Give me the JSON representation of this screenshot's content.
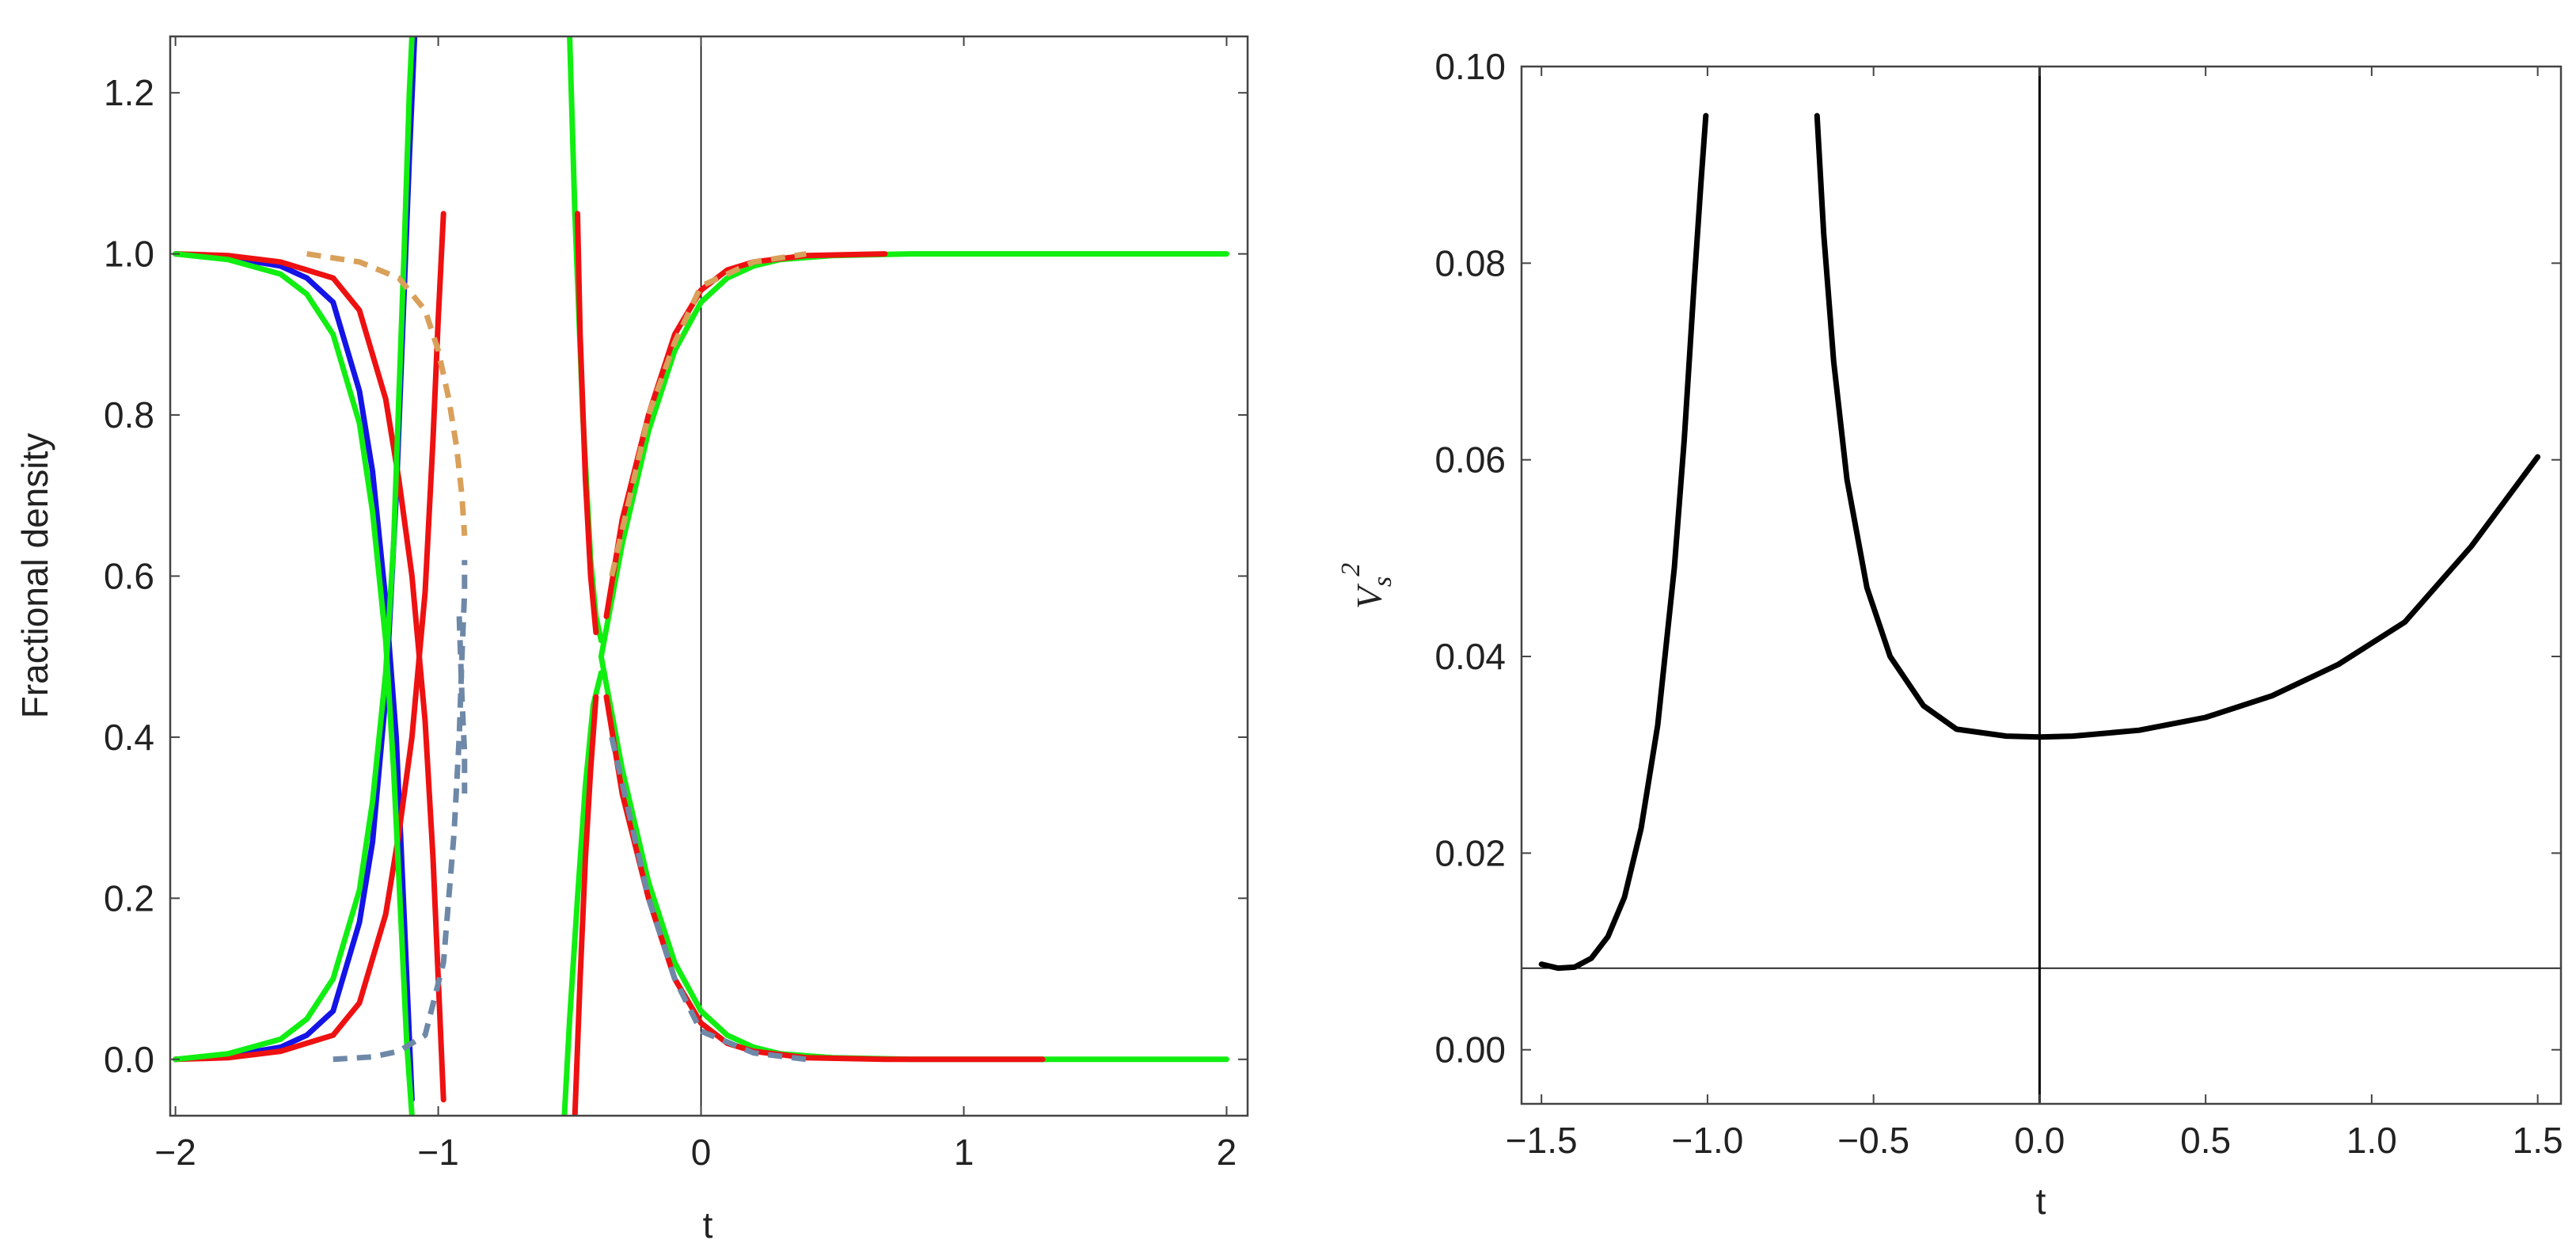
{
  "chart_data": [
    {
      "type": "line",
      "xlabel": "t",
      "ylabel": "Fractional density",
      "xlim": [
        -2.02,
        2.08
      ],
      "ylim": [
        -0.07,
        1.27
      ],
      "x_ticks": [
        -2,
        -1,
        0,
        1,
        2
      ],
      "x_tick_labels": [
        "−2",
        "−1",
        "0",
        "1",
        "2"
      ],
      "y_ticks": [
        0.0,
        0.2,
        0.4,
        0.6,
        0.8,
        1.0,
        1.2
      ],
      "y_tick_labels": [
        "0.0",
        "0.2",
        "0.4",
        "0.6",
        "0.8",
        "1.0",
        "1.2"
      ],
      "grid": false,
      "reference_lines": [
        {
          "orientation": "vertical",
          "x": 0
        }
      ],
      "colors": {
        "red": "#ee1111",
        "blue": "#1414e6",
        "green": "#11ee11",
        "dashed_upper": "#d9a05a",
        "dashed_lower": "#6e88a8"
      },
      "series": [
        {
          "color": "blue",
          "style": "solid",
          "x": [
            -2.0,
            -1.8,
            -1.6,
            -1.5,
            -1.4,
            -1.3,
            -1.25,
            -1.2,
            -1.16,
            -1.13,
            -1.1
          ],
          "y": [
            1.0,
            0.996,
            0.985,
            0.97,
            0.94,
            0.83,
            0.73,
            0.57,
            0.4,
            0.18,
            -0.05
          ]
        },
        {
          "color": "blue",
          "style": "solid",
          "x": [
            -2.0,
            -1.8,
            -1.6,
            -1.5,
            -1.4,
            -1.3,
            -1.25,
            -1.2,
            -1.16,
            -1.13,
            -1.11,
            -1.09
          ],
          "y": [
            0.0,
            0.004,
            0.015,
            0.03,
            0.06,
            0.17,
            0.27,
            0.45,
            0.7,
            0.95,
            1.12,
            1.27
          ]
        },
        {
          "color": "red",
          "style": "solid",
          "x": [
            -2.0,
            -1.8,
            -1.6,
            -1.4,
            -1.3,
            -1.2,
            -1.15,
            -1.1,
            -1.05,
            -1.02,
            -1.0,
            -0.98
          ],
          "y": [
            1.0,
            0.998,
            0.99,
            0.97,
            0.93,
            0.82,
            0.72,
            0.6,
            0.42,
            0.25,
            0.1,
            -0.05
          ]
        },
        {
          "color": "red",
          "style": "solid",
          "x": [
            -2.0,
            -1.8,
            -1.6,
            -1.4,
            -1.3,
            -1.2,
            -1.15,
            -1.1,
            -1.05,
            -1.02,
            -1.0,
            -0.98
          ],
          "y": [
            0.0,
            0.002,
            0.01,
            0.03,
            0.07,
            0.18,
            0.28,
            0.4,
            0.58,
            0.77,
            0.92,
            1.05
          ]
        },
        {
          "color": "green",
          "style": "solid",
          "x": [
            -2.0,
            -1.8,
            -1.6,
            -1.5,
            -1.4,
            -1.3,
            -1.25,
            -1.2,
            -1.17,
            -1.14,
            -1.12,
            -1.1
          ],
          "y": [
            1.0,
            0.993,
            0.975,
            0.95,
            0.9,
            0.79,
            0.68,
            0.52,
            0.36,
            0.16,
            0.02,
            -0.07
          ]
        },
        {
          "color": "green",
          "style": "solid",
          "x": [
            -2.0,
            -1.8,
            -1.6,
            -1.5,
            -1.4,
            -1.3,
            -1.25,
            -1.2,
            -1.17,
            -1.15,
            -1.13,
            -1.11,
            -1.1
          ],
          "y": [
            0.0,
            0.007,
            0.025,
            0.05,
            0.1,
            0.21,
            0.32,
            0.48,
            0.64,
            0.82,
            1.0,
            1.2,
            1.27
          ]
        },
        {
          "color": "dashed_upper",
          "style": "dashed",
          "x": [
            -1.5,
            -1.3,
            -1.15,
            -1.05,
            -1.0,
            -0.96,
            -0.93,
            -0.91,
            -0.9
          ],
          "y": [
            1.0,
            0.99,
            0.97,
            0.93,
            0.88,
            0.82,
            0.76,
            0.7,
            0.65
          ]
        },
        {
          "color": "dashed_lower",
          "style": "dashed",
          "x": [
            -1.4,
            -1.25,
            -1.15,
            -1.05,
            -0.98,
            -0.94,
            -0.92,
            -0.91,
            -0.9,
            -0.9
          ],
          "y": [
            0.0,
            0.003,
            0.01,
            0.03,
            0.12,
            0.28,
            0.4,
            0.5,
            0.58,
            0.62
          ]
        },
        {
          "color": "dashed_lower",
          "style": "dashed",
          "x": [
            -0.92,
            -0.91,
            -0.9,
            -0.9
          ],
          "y": [
            0.55,
            0.45,
            0.38,
            0.33
          ]
        },
        {
          "color": "green",
          "style": "solid",
          "x": [
            -0.5,
            -0.48,
            -0.45,
            -0.42,
            -0.4,
            -0.38
          ],
          "y": [
            1.27,
            1.05,
            0.8,
            0.62,
            0.55,
            0.52
          ]
        },
        {
          "color": "red",
          "style": "solid",
          "x": [
            -0.47,
            -0.46,
            -0.44,
            -0.42,
            -0.4
          ],
          "y": [
            1.05,
            0.9,
            0.72,
            0.6,
            0.53
          ]
        },
        {
          "color": "green",
          "style": "solid",
          "x": [
            -0.52,
            -0.5,
            -0.47,
            -0.44,
            -0.41,
            -0.38
          ],
          "y": [
            -0.07,
            0.05,
            0.2,
            0.34,
            0.44,
            0.48
          ]
        },
        {
          "color": "red",
          "style": "solid",
          "x": [
            -0.48,
            -0.46,
            -0.44,
            -0.42,
            -0.4
          ],
          "y": [
            -0.07,
            0.1,
            0.25,
            0.36,
            0.45
          ]
        },
        {
          "color": "green",
          "style": "solid",
          "x": [
            -0.38,
            -0.3,
            -0.2,
            -0.1,
            0.0,
            0.1,
            0.2,
            0.3,
            0.5,
            0.8,
            1.2,
            2.0
          ],
          "y": [
            0.5,
            0.64,
            0.78,
            0.88,
            0.94,
            0.97,
            0.985,
            0.993,
            0.998,
            1.0,
            1.0,
            1.0
          ]
        },
        {
          "color": "green",
          "style": "solid",
          "x": [
            -0.38,
            -0.3,
            -0.2,
            -0.1,
            0.0,
            0.1,
            0.2,
            0.3,
            0.5,
            0.8,
            1.2,
            2.0
          ],
          "y": [
            0.5,
            0.36,
            0.22,
            0.12,
            0.06,
            0.03,
            0.015,
            0.007,
            0.002,
            0.0,
            0.0,
            0.0
          ]
        },
        {
          "color": "red",
          "style": "solid",
          "x": [
            -0.36,
            -0.3,
            -0.2,
            -0.1,
            0.0,
            0.1,
            0.2,
            0.4,
            0.7
          ],
          "y": [
            0.55,
            0.67,
            0.8,
            0.9,
            0.955,
            0.98,
            0.99,
            0.998,
            1.0
          ]
        },
        {
          "color": "red",
          "style": "solid",
          "x": [
            -0.36,
            -0.3,
            -0.2,
            -0.1,
            0.0,
            0.1,
            0.2,
            0.4,
            0.7,
            1.3
          ],
          "y": [
            0.45,
            0.33,
            0.2,
            0.1,
            0.045,
            0.02,
            0.01,
            0.002,
            0.0,
            0.0
          ]
        },
        {
          "color": "dashed_upper",
          "style": "dashed",
          "x": [
            -0.34,
            -0.2,
            -0.1,
            0.0,
            0.2,
            0.4
          ],
          "y": [
            0.6,
            0.8,
            0.89,
            0.96,
            0.99,
            1.0
          ]
        },
        {
          "color": "dashed_lower",
          "style": "dashed",
          "x": [
            -0.34,
            -0.2,
            -0.1,
            0.0,
            0.2,
            0.4
          ],
          "y": [
            0.4,
            0.2,
            0.1,
            0.035,
            0.008,
            0.0
          ]
        }
      ]
    },
    {
      "type": "line",
      "xlabel": "t",
      "ylabel_main": "V",
      "ylabel_sub": "s",
      "ylabel_sup": "2",
      "xlim": [
        -1.56,
        1.57
      ],
      "ylim": [
        -0.0055,
        0.1
      ],
      "x_ticks": [
        -1.5,
        -1.0,
        -0.5,
        0.0,
        0.5,
        1.0,
        1.5
      ],
      "x_tick_labels": [
        "−1.5",
        "−1.0",
        "−0.5",
        "0.0",
        "0.5",
        "1.0",
        "1.5"
      ],
      "y_ticks": [
        0.0,
        0.02,
        0.04,
        0.06,
        0.08,
        0.1
      ],
      "y_tick_labels": [
        "0.00",
        "0.02",
        "0.04",
        "0.06",
        "0.08",
        "0.10"
      ],
      "grid": false,
      "reference_lines": [
        {
          "orientation": "vertical",
          "x": 0
        },
        {
          "orientation": "horizontal",
          "y": 0.0083
        }
      ],
      "colors": {
        "line": "#000000"
      },
      "series": [
        {
          "color": "line",
          "style": "solid",
          "x": [
            -1.5,
            -1.45,
            -1.4,
            -1.35,
            -1.3,
            -1.25,
            -1.2,
            -1.15,
            -1.1,
            -1.07,
            -1.04,
            -1.02,
            -1.005
          ],
          "y": [
            0.0087,
            0.0083,
            0.0084,
            0.0093,
            0.0115,
            0.0155,
            0.0225,
            0.033,
            0.049,
            0.062,
            0.078,
            0.088,
            0.095
          ]
        },
        {
          "color": "line",
          "style": "solid",
          "x": [
            -0.67,
            -0.65,
            -0.62,
            -0.58,
            -0.52,
            -0.45,
            -0.35,
            -0.25,
            -0.1,
            0.0,
            0.1,
            0.3,
            0.5,
            0.7,
            0.9,
            1.1,
            1.3,
            1.5
          ],
          "y": [
            0.095,
            0.083,
            0.07,
            0.058,
            0.047,
            0.04,
            0.035,
            0.0326,
            0.0319,
            0.0318,
            0.0319,
            0.0325,
            0.0338,
            0.036,
            0.0392,
            0.0435,
            0.0512,
            0.0603
          ]
        }
      ]
    }
  ]
}
